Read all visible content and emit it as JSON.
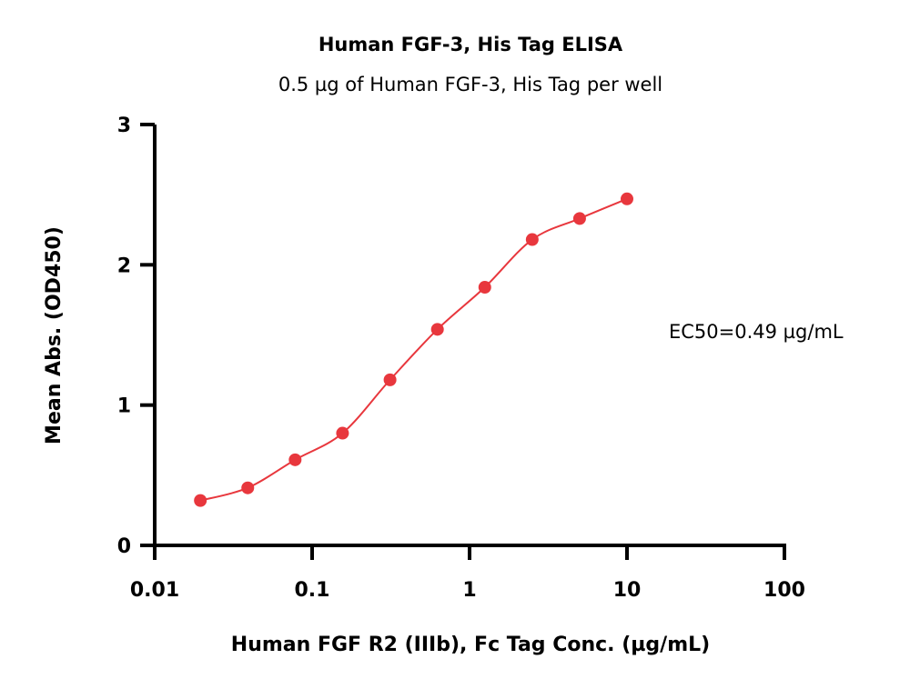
{
  "chart_data": {
    "type": "scatter",
    "title": "Human FGF-3, His Tag ELISA",
    "subtitle": "0.5 µg of Human FGF-3, His Tag per well",
    "xlabel": "Human FGF R2 (IIIb), Fc Tag Conc. (µg/mL)",
    "ylabel": "Mean Abs. (OD450)",
    "xscale": "log",
    "xlim": [
      0.01,
      100
    ],
    "ylim": [
      0,
      3
    ],
    "xticks": [
      "0.01",
      "0.1",
      "1",
      "10",
      "100"
    ],
    "yticks": [
      "0",
      "1",
      "2",
      "3"
    ],
    "grid": false,
    "fit": "sigmoidal curve",
    "color": "#e8373d",
    "x": [
      0.0195,
      0.039,
      0.078,
      0.156,
      0.3125,
      0.625,
      1.25,
      2.5,
      5,
      10
    ],
    "y": [
      0.32,
      0.41,
      0.61,
      0.8,
      1.18,
      1.54,
      1.84,
      2.18,
      2.33,
      2.47
    ],
    "annotation": "EC50=0.49 µg/mL"
  }
}
